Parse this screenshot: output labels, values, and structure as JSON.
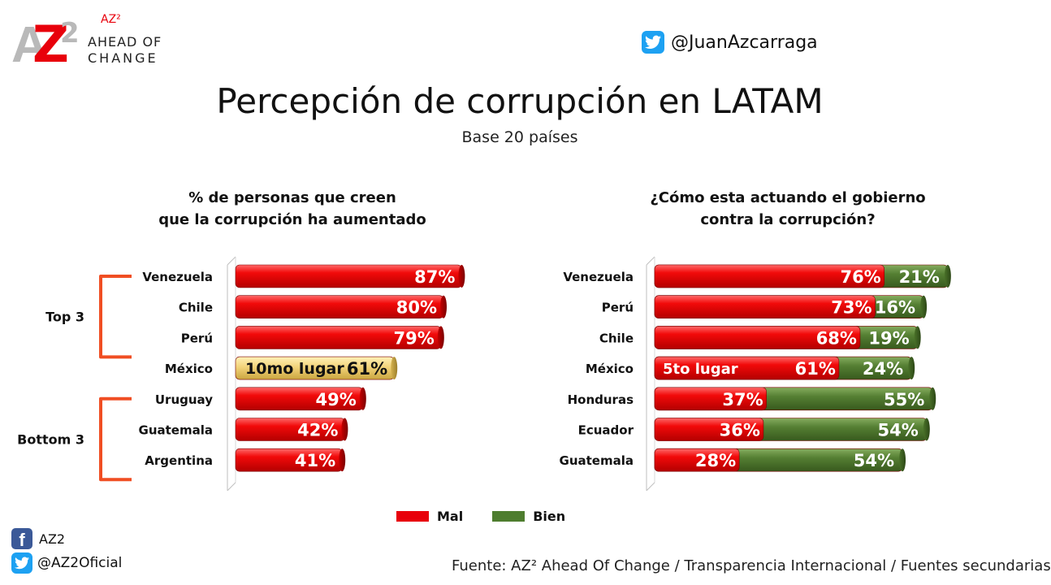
{
  "brand": {
    "logo_mark": "AZ2",
    "superscript_name": "AZ²",
    "line1": "AHEAD OF",
    "line2": "CHANGE"
  },
  "header": {
    "twitter_handle": "@JuanAzcarraga",
    "twitter_icon": "twitter-icon"
  },
  "title": "Percepción de corrupción en LATAM",
  "subtitle": "Base 20 países",
  "chart_data": [
    {
      "type": "bar",
      "orientation": "horizontal",
      "title_lines": [
        "% de personas que creen",
        "que la corrupción ha aumentado"
      ],
      "categories": [
        "Venezuela",
        "Chile",
        "Perú",
        "México",
        "Uruguay",
        "Guatemala",
        "Argentina"
      ],
      "values": [
        87,
        80,
        79,
        61,
        49,
        42,
        41
      ],
      "labels": [
        "87%",
        "80%",
        "79%",
        "61%",
        "49%",
        "42%",
        "41%"
      ],
      "highlight": {
        "category": "México",
        "annotation": "10mo lugar",
        "color": "#f3d37a"
      },
      "bar_color": "#e8000b",
      "groups": [
        {
          "label": "Top 3",
          "categories": [
            "Venezuela",
            "Chile",
            "Perú"
          ]
        },
        {
          "label": "Bottom 3",
          "categories": [
            "Uruguay",
            "Guatemala",
            "Argentina"
          ]
        }
      ],
      "xlim": [
        0,
        100
      ]
    },
    {
      "type": "bar",
      "orientation": "horizontal",
      "stacked": true,
      "title_lines": [
        "¿Cómo esta actuando el gobierno",
        "contra la corrupción?"
      ],
      "categories": [
        "Venezuela",
        "Perú",
        "Chile",
        "México",
        "Honduras",
        "Ecuador",
        "Guatemala"
      ],
      "series": [
        {
          "name": "Mal",
          "color": "#e8000b",
          "values": [
            76,
            73,
            68,
            61,
            37,
            36,
            28
          ],
          "labels": [
            "76%",
            "73%",
            "68%",
            "61%",
            "37%",
            "36%",
            "28%"
          ]
        },
        {
          "name": "Bien",
          "color": "#4e7d2f",
          "values": [
            21,
            16,
            19,
            24,
            55,
            54,
            54
          ],
          "labels": [
            "21%",
            "16%",
            "19%",
            "24%",
            "55%",
            "54%",
            "54%"
          ]
        }
      ],
      "highlight": {
        "category": "México",
        "annotation": "5to lugar"
      },
      "legend": "bottom",
      "xlim": [
        0,
        100
      ]
    }
  ],
  "legend": {
    "mal": "Mal",
    "bien": "Bien"
  },
  "footer": {
    "facebook_label": "AZ2",
    "twitter_label": "@AZ2Oficial",
    "source": "Fuente: AZ² Ahead Of Change /  Transparencia Internacional / Fuentes secundarias"
  }
}
